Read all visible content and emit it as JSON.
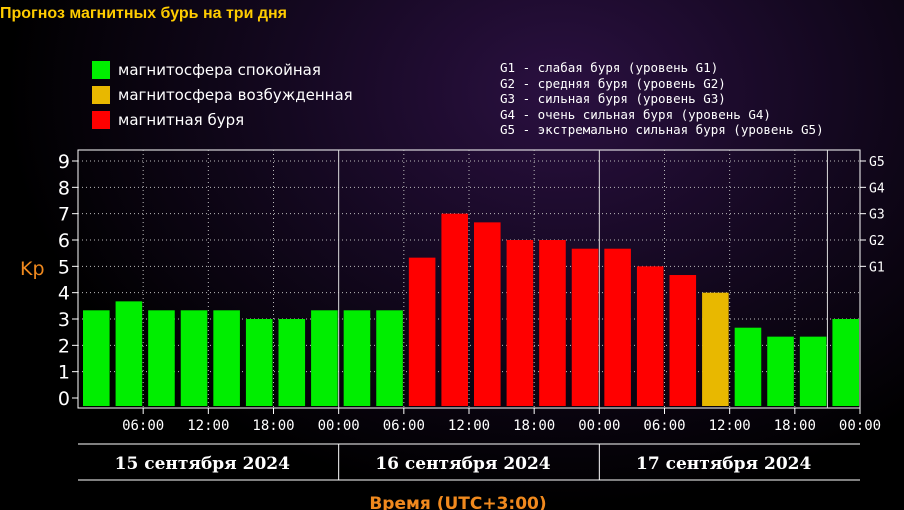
{
  "title": "Прогноз магнитных бурь на три дня",
  "legend": [
    {
      "label": "магнитосфера спокойная",
      "color": "#00ee00"
    },
    {
      "label": "магнитосфера возбужденная",
      "color": "#e8b800"
    },
    {
      "label": "магнитная буря",
      "color": "#ff0000"
    }
  ],
  "g_levels": [
    "G1 - слабая буря (уровень G1)",
    "G2 - средняя буря (уровень G2)",
    "G3 - сильная буря (уровень G3)",
    "G4 - очень сильная буря (уровень G4)",
    "G5 - экстремально сильная буря (уровень G5)"
  ],
  "chart_data": {
    "type": "bar",
    "ylabel": "Kp",
    "xlabel": "Время (UTC+3:00)",
    "ylim": [
      0,
      9
    ],
    "yticks": [
      "0",
      "1",
      "2",
      "3",
      "4",
      "5",
      "6",
      "7",
      "8",
      "9"
    ],
    "right_ticks": [
      {
        "label": "G1",
        "kp": 5
      },
      {
        "label": "G2",
        "kp": 6
      },
      {
        "label": "G3",
        "kp": 7
      },
      {
        "label": "G4",
        "kp": 8
      },
      {
        "label": "G5",
        "kp": 9
      }
    ],
    "time_ticks": [
      "06:00",
      "12:00",
      "18:00",
      "00:00",
      "06:00",
      "12:00",
      "18:00",
      "00:00",
      "06:00",
      "12:00",
      "18:00",
      "00:00"
    ],
    "days": [
      "15 сентября 2024",
      "16 сентября 2024",
      "17 сентября 2024"
    ],
    "grid": true,
    "values": [
      3.33,
      3.67,
      3.33,
      3.33,
      3.33,
      3.0,
      3.0,
      3.33,
      3.33,
      3.33,
      5.33,
      7.0,
      6.67,
      6.0,
      6.0,
      5.67,
      5.67,
      5.0,
      4.67,
      4.0,
      2.67,
      2.33,
      2.33,
      3.0
    ],
    "colors": [
      "#00ee00",
      "#00ee00",
      "#00ee00",
      "#00ee00",
      "#00ee00",
      "#00ee00",
      "#00ee00",
      "#00ee00",
      "#00ee00",
      "#00ee00",
      "#ff0000",
      "#ff0000",
      "#ff0000",
      "#ff0000",
      "#ff0000",
      "#ff0000",
      "#ff0000",
      "#ff0000",
      "#ff0000",
      "#e8b800",
      "#00ee00",
      "#00ee00",
      "#00ee00",
      "#00ee00"
    ]
  }
}
